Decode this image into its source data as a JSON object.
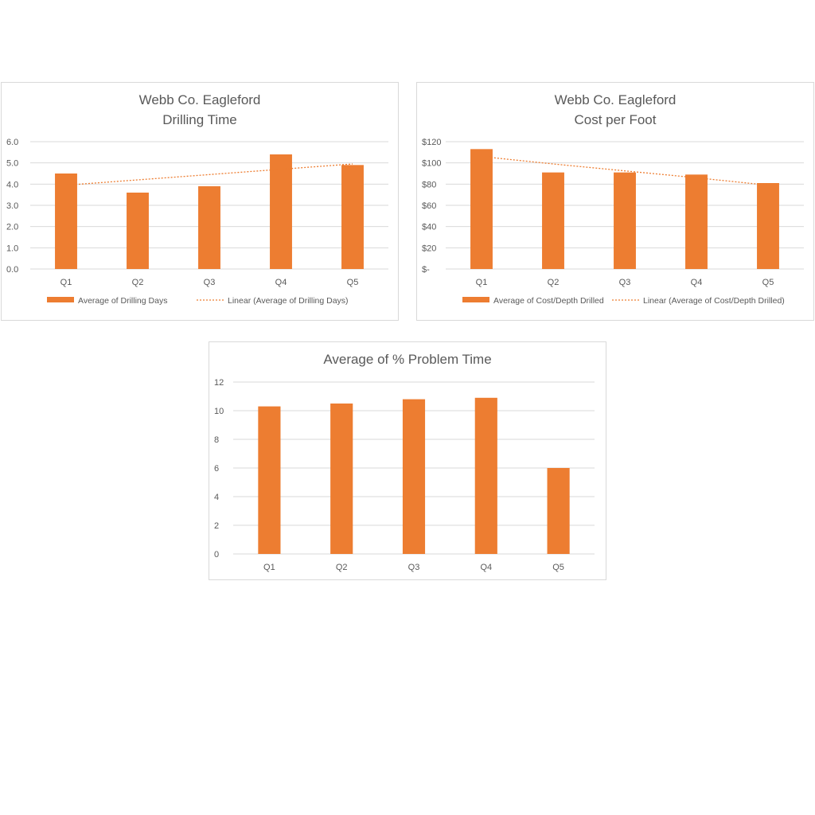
{
  "colors": {
    "bar": "#ED7D31",
    "grid": "#D9D9D9",
    "text": "#595959"
  },
  "chart_data": [
    {
      "type": "bar",
      "title_lines": [
        "Webb Co. Eagleford",
        "Drilling Time"
      ],
      "categories": [
        "Q1",
        "Q2",
        "Q3",
        "Q4",
        "Q5"
      ],
      "series": [
        {
          "name": "Average of Drilling Days",
          "values": [
            4.5,
            3.6,
            3.9,
            5.4,
            4.9
          ]
        }
      ],
      "trendline": {
        "name": "Linear (Average of Drilling Days)",
        "type": "linear",
        "values": [
          3.95,
          4.2,
          4.45,
          4.7,
          4.95
        ]
      },
      "ylim": [
        0,
        6
      ],
      "yticks": [
        "0.0",
        "1.0",
        "2.0",
        "3.0",
        "4.0",
        "5.0",
        "6.0"
      ],
      "grid": true,
      "legend": "bottom"
    },
    {
      "type": "bar",
      "title_lines": [
        "Webb Co. Eagleford",
        "Cost per Foot"
      ],
      "categories": [
        "Q1",
        "Q2",
        "Q3",
        "Q4",
        "Q5"
      ],
      "series": [
        {
          "name": "Average of Cost/Depth Drilled",
          "values": [
            113,
            91,
            91,
            89,
            81
          ]
        }
      ],
      "trendline": {
        "name": "Linear (Average of Cost/Depth Drilled)",
        "type": "linear",
        "values": [
          106,
          99,
          92.5,
          86,
          79
        ]
      },
      "ylim": [
        0,
        120
      ],
      "yticks": [
        "$-",
        "$20",
        "$40",
        "$60",
        "$80",
        "$100",
        "$120"
      ],
      "grid": true,
      "legend": "bottom"
    },
    {
      "type": "bar",
      "title_lines": [
        "Average of % Problem Time"
      ],
      "categories": [
        "Q1",
        "Q2",
        "Q3",
        "Q4",
        "Q5"
      ],
      "series": [
        {
          "values": [
            10.3,
            10.5,
            10.8,
            10.9,
            6.0
          ]
        }
      ],
      "ylim": [
        0,
        12
      ],
      "yticks": [
        "0",
        "2",
        "4",
        "6",
        "8",
        "10",
        "12"
      ],
      "grid": true,
      "legend": "none"
    }
  ]
}
